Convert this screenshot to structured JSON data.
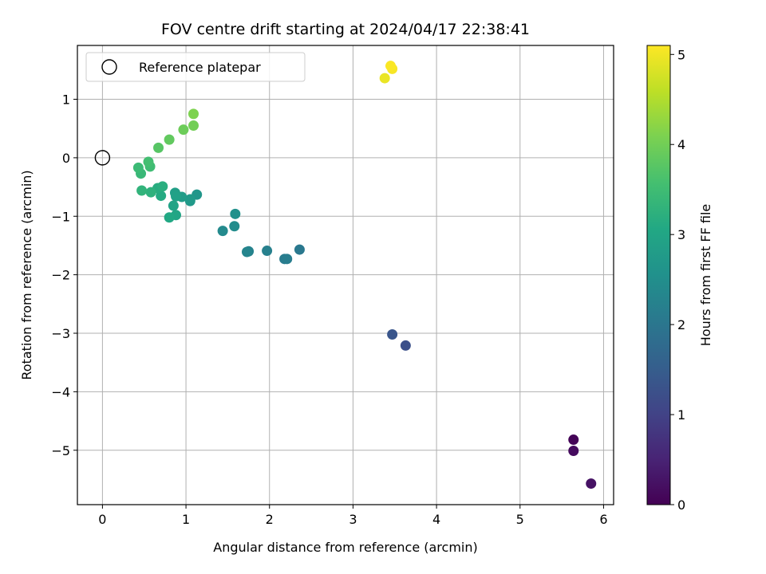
{
  "chart_data": {
    "type": "scatter",
    "title": "FOV centre drift starting at 2024/04/17 22:38:41",
    "xlabel": "Angular distance from reference (arcmin)",
    "ylabel": "Rotation from reference (arcmin)",
    "xlim": [
      -0.3,
      6.12
    ],
    "ylim": [
      -5.93,
      1.92
    ],
    "xticks": [
      0,
      1,
      2,
      3,
      4,
      5,
      6
    ],
    "xtick_labels": [
      "0",
      "1",
      "2",
      "3",
      "4",
      "5",
      "6"
    ],
    "yticks": [
      1,
      0,
      -1,
      -2,
      -3,
      -4,
      -5
    ],
    "ytick_labels": [
      "1",
      "0",
      "−1",
      "−2",
      "−3",
      "−4",
      "−5"
    ],
    "grid": true,
    "legend": {
      "position": "top-left",
      "entries": [
        "Reference platepar"
      ]
    },
    "reference_point": {
      "x": 0,
      "y": 0,
      "label": "Reference platepar"
    },
    "colorbar": {
      "label": "Hours from first FF file",
      "range": [
        0,
        5.1
      ],
      "ticks": [
        0,
        1,
        2,
        3,
        4,
        5
      ],
      "tick_labels": [
        "0",
        "1",
        "2",
        "3",
        "4",
        "5"
      ],
      "colormap": "viridis"
    },
    "points": [
      {
        "x": 5.64,
        "y": -4.82,
        "hours": 0.05
      },
      {
        "x": 5.64,
        "y": -5.01,
        "hours": 0.15
      },
      {
        "x": 5.85,
        "y": -5.57,
        "hours": 0.25
      },
      {
        "x": 3.63,
        "y": -3.21,
        "hours": 1.25
      },
      {
        "x": 3.47,
        "y": -3.02,
        "hours": 1.35
      },
      {
        "x": 2.36,
        "y": -1.57,
        "hours": 2.05
      },
      {
        "x": 2.18,
        "y": -1.73,
        "hours": 2.1
      },
      {
        "x": 2.21,
        "y": -1.73,
        "hours": 2.15
      },
      {
        "x": 1.97,
        "y": -1.59,
        "hours": 2.2
      },
      {
        "x": 1.75,
        "y": -1.6,
        "hours": 2.25
      },
      {
        "x": 1.73,
        "y": -1.61,
        "hours": 2.3
      },
      {
        "x": 1.44,
        "y": -1.25,
        "hours": 2.4
      },
      {
        "x": 1.58,
        "y": -1.17,
        "hours": 2.45
      },
      {
        "x": 1.59,
        "y": -0.96,
        "hours": 2.55
      },
      {
        "x": 1.13,
        "y": -0.63,
        "hours": 2.65
      },
      {
        "x": 1.05,
        "y": -0.74,
        "hours": 2.7
      },
      {
        "x": 1.05,
        "y": -0.71,
        "hours": 2.75
      },
      {
        "x": 0.95,
        "y": -0.67,
        "hours": 2.8
      },
      {
        "x": 0.87,
        "y": -0.6,
        "hours": 2.85
      },
      {
        "x": 0.88,
        "y": -0.66,
        "hours": 2.9
      },
      {
        "x": 0.85,
        "y": -0.82,
        "hours": 2.95
      },
      {
        "x": 0.88,
        "y": -0.98,
        "hours": 3.0
      },
      {
        "x": 0.8,
        "y": -1.02,
        "hours": 3.05
      },
      {
        "x": 0.7,
        "y": -0.65,
        "hours": 3.1
      },
      {
        "x": 0.66,
        "y": -0.52,
        "hours": 3.15
      },
      {
        "x": 0.72,
        "y": -0.49,
        "hours": 3.2
      },
      {
        "x": 0.58,
        "y": -0.59,
        "hours": 3.25
      },
      {
        "x": 0.47,
        "y": -0.56,
        "hours": 3.3
      },
      {
        "x": 0.46,
        "y": -0.27,
        "hours": 3.4
      },
      {
        "x": 0.43,
        "y": -0.17,
        "hours": 3.45
      },
      {
        "x": 0.57,
        "y": -0.15,
        "hours": 3.5
      },
      {
        "x": 0.55,
        "y": -0.07,
        "hours": 3.55
      },
      {
        "x": 0.67,
        "y": 0.17,
        "hours": 3.75
      },
      {
        "x": 0.8,
        "y": 0.31,
        "hours": 3.85
      },
      {
        "x": 0.97,
        "y": 0.48,
        "hours": 3.95
      },
      {
        "x": 1.09,
        "y": 0.55,
        "hours": 4.0
      },
      {
        "x": 1.09,
        "y": 0.75,
        "hours": 4.1
      },
      {
        "x": 3.38,
        "y": 1.36,
        "hours": 4.95
      },
      {
        "x": 3.47,
        "y": 1.52,
        "hours": 5.05
      },
      {
        "x": 3.45,
        "y": 1.57,
        "hours": 5.08
      }
    ]
  }
}
